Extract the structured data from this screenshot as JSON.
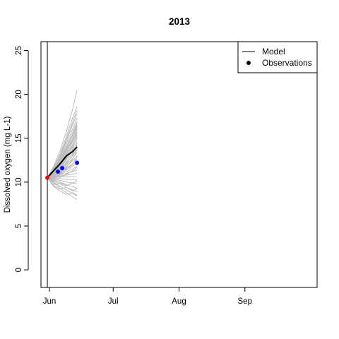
{
  "chart_data": {
    "type": "line",
    "title": "2013",
    "xlabel": "",
    "ylabel": "Dissolved oxygen (mg L-1)",
    "x_axis": {
      "type": "date",
      "range": [
        "2013-05-28",
        "2013-10-05"
      ],
      "ticks": [
        {
          "date": "2013-06-01",
          "label": "Jun"
        },
        {
          "date": "2013-07-01",
          "label": "Jul"
        },
        {
          "date": "2013-08-01",
          "label": "Aug"
        },
        {
          "date": "2013-09-01",
          "label": "Sep"
        }
      ]
    },
    "y_axis": {
      "range": [
        -2,
        26
      ],
      "ticks": [
        0,
        5,
        10,
        15,
        20,
        25
      ]
    },
    "grid": false,
    "vertical_marker_date": "2013-05-31",
    "legend": {
      "position": "top-right",
      "entries": [
        {
          "label": "Model",
          "symbol": "line",
          "color": "#000000"
        },
        {
          "label": "Observations",
          "symbol": "point",
          "color": "#000000"
        }
      ]
    },
    "series": [
      {
        "name": "Model",
        "kind": "line",
        "color": "#000000",
        "points": [
          {
            "date": "2013-05-31",
            "value": 10.5
          },
          {
            "date": "2013-06-03",
            "value": 11.3
          },
          {
            "date": "2013-06-06",
            "value": 12.1
          },
          {
            "date": "2013-06-09",
            "value": 13.0
          },
          {
            "date": "2013-06-12",
            "value": 13.5
          },
          {
            "date": "2013-06-14",
            "value": 14.0
          }
        ]
      },
      {
        "name": "Observations",
        "kind": "points",
        "points": [
          {
            "date": "2013-05-31",
            "value": 10.5,
            "color": "#ff0000"
          },
          {
            "date": "2013-06-05",
            "value": 11.2,
            "color": "#0000ff"
          },
          {
            "date": "2013-06-07",
            "value": 11.6,
            "color": "#0000ff"
          },
          {
            "date": "2013-06-14",
            "value": 12.2,
            "color": "#0000ff"
          }
        ]
      }
    ],
    "ensemble": {
      "color": "#bbbbbb",
      "dates": [
        "2013-05-31",
        "2013-06-03",
        "2013-06-06",
        "2013-06-09",
        "2013-06-12",
        "2013-06-14"
      ],
      "members": [
        [
          10.5,
          11.8,
          13.6,
          15.8,
          18.4,
          20.5
        ],
        [
          10.5,
          11.6,
          13.2,
          15.2,
          17.4,
          18.6
        ],
        [
          10.5,
          11.5,
          12.9,
          14.7,
          16.6,
          17.8
        ],
        [
          10.5,
          11.5,
          12.8,
          14.4,
          16.1,
          17.3
        ],
        [
          10.5,
          11.4,
          12.6,
          14.1,
          15.7,
          16.9
        ],
        [
          10.5,
          11.3,
          12.4,
          13.8,
          15.3,
          16.5
        ],
        [
          10.5,
          11.3,
          12.3,
          13.6,
          15.0,
          16.1
        ],
        [
          10.5,
          11.2,
          12.1,
          13.3,
          14.6,
          15.7
        ],
        [
          10.5,
          11.1,
          12.0,
          13.1,
          14.3,
          15.4
        ],
        [
          10.5,
          11.1,
          11.9,
          12.9,
          14.0,
          15.0
        ],
        [
          10.5,
          11.0,
          11.7,
          12.6,
          13.6,
          14.6
        ],
        [
          10.5,
          11.0,
          11.6,
          12.4,
          13.3,
          14.2
        ],
        [
          10.5,
          10.9,
          11.5,
          12.2,
          13.0,
          13.8
        ],
        [
          10.5,
          10.9,
          11.4,
          12.0,
          12.7,
          13.4
        ],
        [
          10.5,
          10.8,
          11.2,
          11.8,
          12.4,
          13.0
        ],
        [
          10.5,
          10.8,
          11.1,
          11.6,
          12.1,
          12.6
        ],
        [
          10.5,
          10.7,
          11.0,
          11.4,
          11.8,
          12.2
        ],
        [
          10.5,
          10.7,
          10.9,
          11.2,
          11.5,
          11.8
        ],
        [
          10.5,
          10.6,
          10.8,
          11.0,
          11.2,
          11.4
        ],
        [
          10.5,
          10.6,
          10.7,
          10.8,
          10.9,
          11.0
        ],
        [
          10.5,
          10.5,
          10.6,
          10.6,
          10.6,
          10.6
        ],
        [
          10.5,
          10.4,
          10.4,
          10.3,
          10.3,
          10.2
        ],
        [
          10.5,
          10.3,
          10.2,
          10.0,
          9.9,
          9.8
        ],
        [
          10.5,
          10.2,
          10.0,
          9.7,
          9.5,
          9.3
        ],
        [
          10.5,
          10.1,
          9.8,
          9.4,
          9.1,
          8.9
        ],
        [
          10.5,
          10.0,
          9.5,
          9.1,
          8.7,
          8.4
        ],
        [
          10.5,
          9.9,
          9.3,
          8.8,
          8.3,
          8.0
        ],
        [
          10.5,
          11.7,
          13.0,
          14.9,
          16.9,
          18.2
        ],
        [
          10.5,
          11.2,
          12.5,
          13.9,
          15.4,
          16.7
        ],
        [
          10.5,
          11.4,
          12.2,
          13.5,
          14.9,
          16.3
        ],
        [
          10.5,
          10.9,
          11.8,
          12.8,
          14.2,
          15.5
        ],
        [
          10.5,
          10.6,
          11.3,
          12.1,
          13.1,
          14.4
        ],
        [
          10.5,
          10.3,
          10.9,
          11.5,
          12.0,
          12.9
        ],
        [
          10.5,
          10.1,
          10.5,
          10.9,
          11.3,
          11.7
        ],
        [
          10.5,
          9.7,
          9.9,
          9.6,
          9.9,
          10.1
        ],
        [
          10.5,
          9.6,
          9.2,
          9.4,
          9.0,
          9.3
        ],
        [
          10.5,
          9.5,
          9.0,
          8.6,
          8.8,
          8.5
        ],
        [
          10.5,
          11.0,
          12.2,
          13.2,
          14.8,
          16.0
        ],
        [
          10.5,
          10.8,
          11.9,
          12.7,
          13.8,
          15.2
        ],
        [
          10.5,
          10.4,
          11.0,
          11.7,
          12.6,
          13.7
        ]
      ]
    }
  }
}
